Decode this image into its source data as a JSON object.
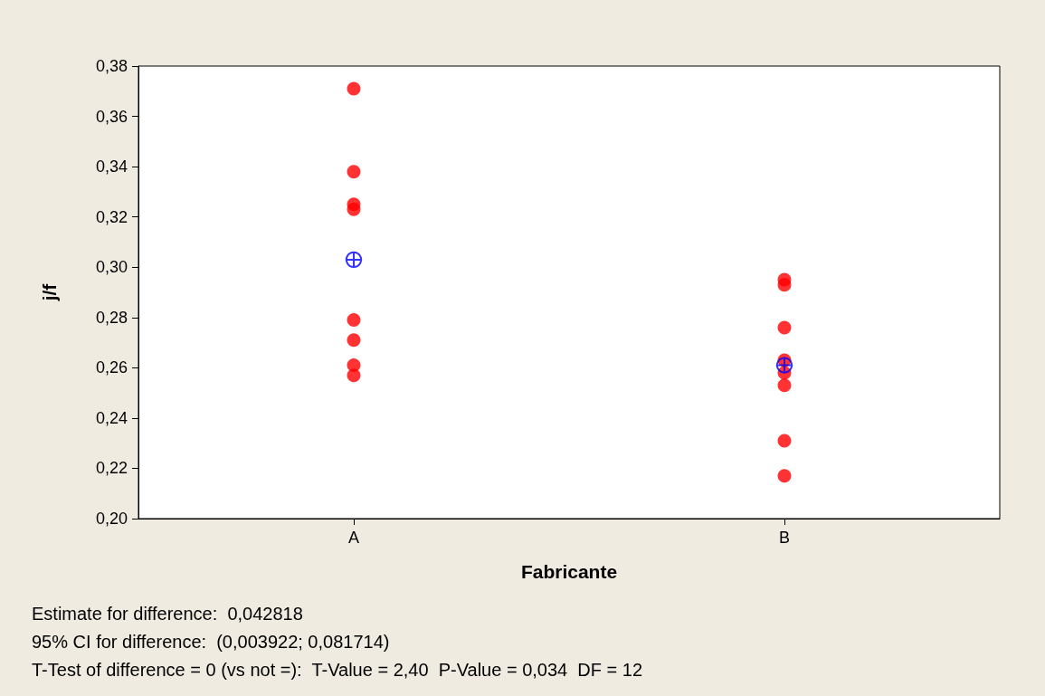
{
  "chart_data": {
    "type": "scatter",
    "xlabel": "Fabricante",
    "ylabel": "j/f",
    "categories": [
      "A",
      "B"
    ],
    "ylim": [
      0.2,
      0.38
    ],
    "yticks": [
      {
        "value": 0.2,
        "label": "0,20"
      },
      {
        "value": 0.22,
        "label": "0,22"
      },
      {
        "value": 0.24,
        "label": "0,24"
      },
      {
        "value": 0.26,
        "label": "0,26"
      },
      {
        "value": 0.28,
        "label": "0,28"
      },
      {
        "value": 0.3,
        "label": "0,30"
      },
      {
        "value": 0.32,
        "label": "0,32"
      },
      {
        "value": 0.34,
        "label": "0,34"
      },
      {
        "value": 0.36,
        "label": "0,36"
      },
      {
        "value": 0.38,
        "label": "0,38"
      }
    ],
    "grid": false,
    "marker": "circle",
    "series": [
      {
        "color": "#ff0000",
        "x": [
          "A",
          "A",
          "A",
          "A",
          "A",
          "A",
          "A",
          "A"
        ],
        "values": [
          0.371,
          0.338,
          0.325,
          0.323,
          0.279,
          0.271,
          0.261,
          0.257
        ]
      },
      {
        "color": "#ff0000",
        "x": [
          "B",
          "B",
          "B",
          "B",
          "B",
          "B",
          "B",
          "B"
        ],
        "values": [
          0.295,
          0.293,
          0.276,
          0.263,
          0.258,
          0.253,
          0.231,
          0.217
        ]
      },
      {
        "color": "#0000ff",
        "marker": "cross",
        "x": [
          "A",
          "B"
        ],
        "values": [
          0.303,
          0.261
        ]
      }
    ],
    "annotations": [
      "Estimate for difference:  0,042818",
      "95% CI for difference:  (0,003922; 0,081714)",
      "T-Test of difference = 0 (vs not =):  T-Value = 2,40  P-Value = 0,034  DF = 12"
    ]
  }
}
